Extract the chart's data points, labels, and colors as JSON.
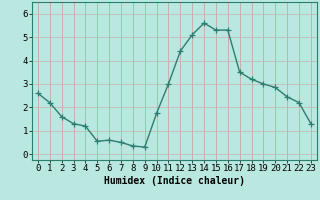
{
  "x": [
    0,
    1,
    2,
    3,
    4,
    5,
    6,
    7,
    8,
    9,
    10,
    11,
    12,
    13,
    14,
    15,
    16,
    17,
    18,
    19,
    20,
    21,
    22,
    23
  ],
  "y": [
    2.6,
    2.2,
    1.6,
    1.3,
    1.2,
    0.55,
    0.6,
    0.5,
    0.35,
    0.3,
    1.75,
    3.0,
    4.4,
    5.1,
    5.6,
    5.3,
    5.3,
    3.5,
    3.2,
    3.0,
    2.85,
    2.45,
    2.2,
    1.3
  ],
  "line_color": "#2d7d6f",
  "marker": "+",
  "marker_color": "#2d7d6f",
  "bg_color": "#b8e8e0",
  "grid_color_v": "#d09898",
  "grid_color_h": "#c8b0b0",
  "xlabel": "Humidex (Indice chaleur)",
  "xlabel_fontsize": 7,
  "ylim": [
    -0.25,
    6.5
  ],
  "xlim": [
    -0.5,
    23.5
  ],
  "yticks": [
    0,
    1,
    2,
    3,
    4,
    5,
    6
  ],
  "xticks": [
    0,
    1,
    2,
    3,
    4,
    5,
    6,
    7,
    8,
    9,
    10,
    11,
    12,
    13,
    14,
    15,
    16,
    17,
    18,
    19,
    20,
    21,
    22,
    23
  ],
  "tick_fontsize": 6.5,
  "spine_color": "#2d7d6f",
  "linewidth": 1.0,
  "markersize": 4,
  "markeredgewidth": 0.9
}
